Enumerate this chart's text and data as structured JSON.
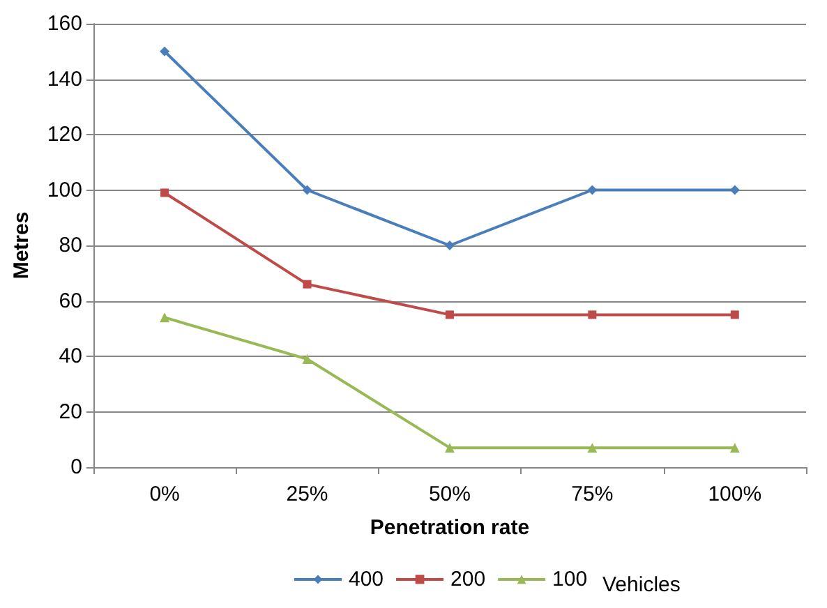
{
  "chart_data": {
    "type": "line",
    "xlabel": "Penetration rate",
    "ylabel": "Metres",
    "legend_title": "Vehicles",
    "categories": [
      "0%",
      "25%",
      "50%",
      "75%",
      "100%"
    ],
    "series": [
      {
        "name": "400",
        "color": "#4a7ebb",
        "marker": "diamond",
        "values": [
          150,
          100,
          80,
          100,
          100
        ]
      },
      {
        "name": "200",
        "color": "#be4b48",
        "marker": "square",
        "values": [
          99,
          66,
          55,
          55,
          55
        ]
      },
      {
        "name": "100",
        "color": "#98b954",
        "marker": "triangle",
        "values": [
          54,
          39,
          7,
          7,
          7
        ]
      }
    ],
    "ylim": [
      0,
      160
    ],
    "yticks": [
      0,
      20,
      40,
      60,
      80,
      100,
      120,
      140,
      160
    ],
    "grid": "y",
    "legend": "bottom"
  }
}
